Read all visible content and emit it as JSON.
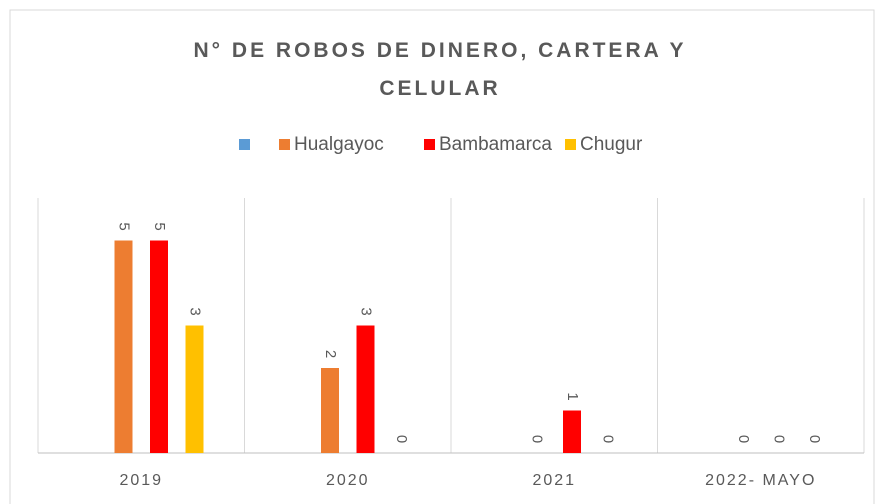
{
  "chart_data": {
    "type": "bar",
    "title": "N° DE ROBOS DE DINERO, CARTERA Y CELULAR",
    "categories": [
      "2019",
      "2020",
      "2021",
      "2022- MAYO"
    ],
    "series": [
      {
        "name": null,
        "color": "#5b9bd5",
        "values": [
          null,
          null,
          null,
          null
        ]
      },
      {
        "name": "Hualgayoc",
        "color": "#ed7d31",
        "values": [
          5,
          2,
          0,
          0
        ]
      },
      {
        "name": "Bambamarca",
        "color": "#ff0000",
        "values": [
          5,
          3,
          1,
          0
        ]
      },
      {
        "name": "Chugur",
        "color": "#ffc000",
        "values": [
          3,
          0,
          0,
          0
        ]
      }
    ],
    "ylim": [
      0,
      6
    ],
    "legend": "top"
  }
}
